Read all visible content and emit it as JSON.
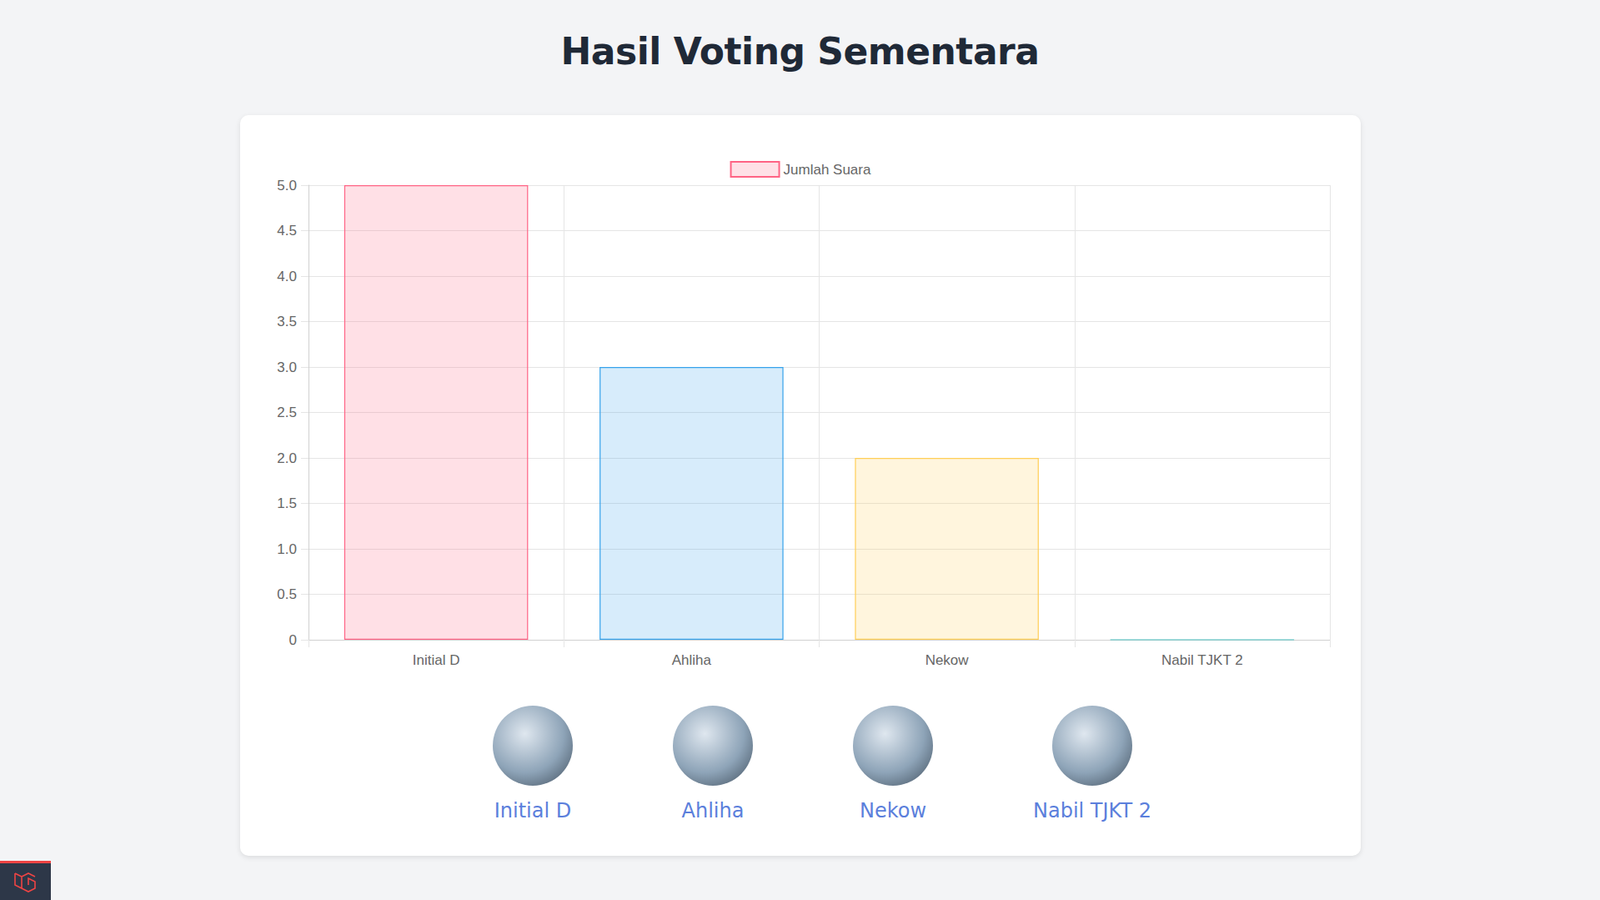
{
  "chart_data": {
    "type": "bar",
    "title": "Hasil Voting Sementara",
    "categories": [
      "Initial D",
      "Ahliha",
      "Nekow",
      "Nabil TJKT 2"
    ],
    "series": [
      {
        "name": "Jumlah Suara",
        "colors": [
          "#ff6384",
          "#36a2eb",
          "#ffce56",
          "#4bc0c0"
        ],
        "values": [
          5,
          3,
          2,
          0
        ]
      }
    ],
    "ylim": [
      0,
      5
    ],
    "yticks": [
      0,
      0.5,
      {
        "value": 1,
        "label": "1.0"
      },
      1.5,
      {
        "value": 2,
        "label": "2.0"
      },
      2.5,
      {
        "value": 3,
        "label": "3.0"
      },
      3.5,
      {
        "value": 4,
        "label": "4.0"
      },
      4.5,
      {
        "value": 5,
        "label": "5.0"
      }
    ],
    "grid": true,
    "legend": "top"
  }
}
